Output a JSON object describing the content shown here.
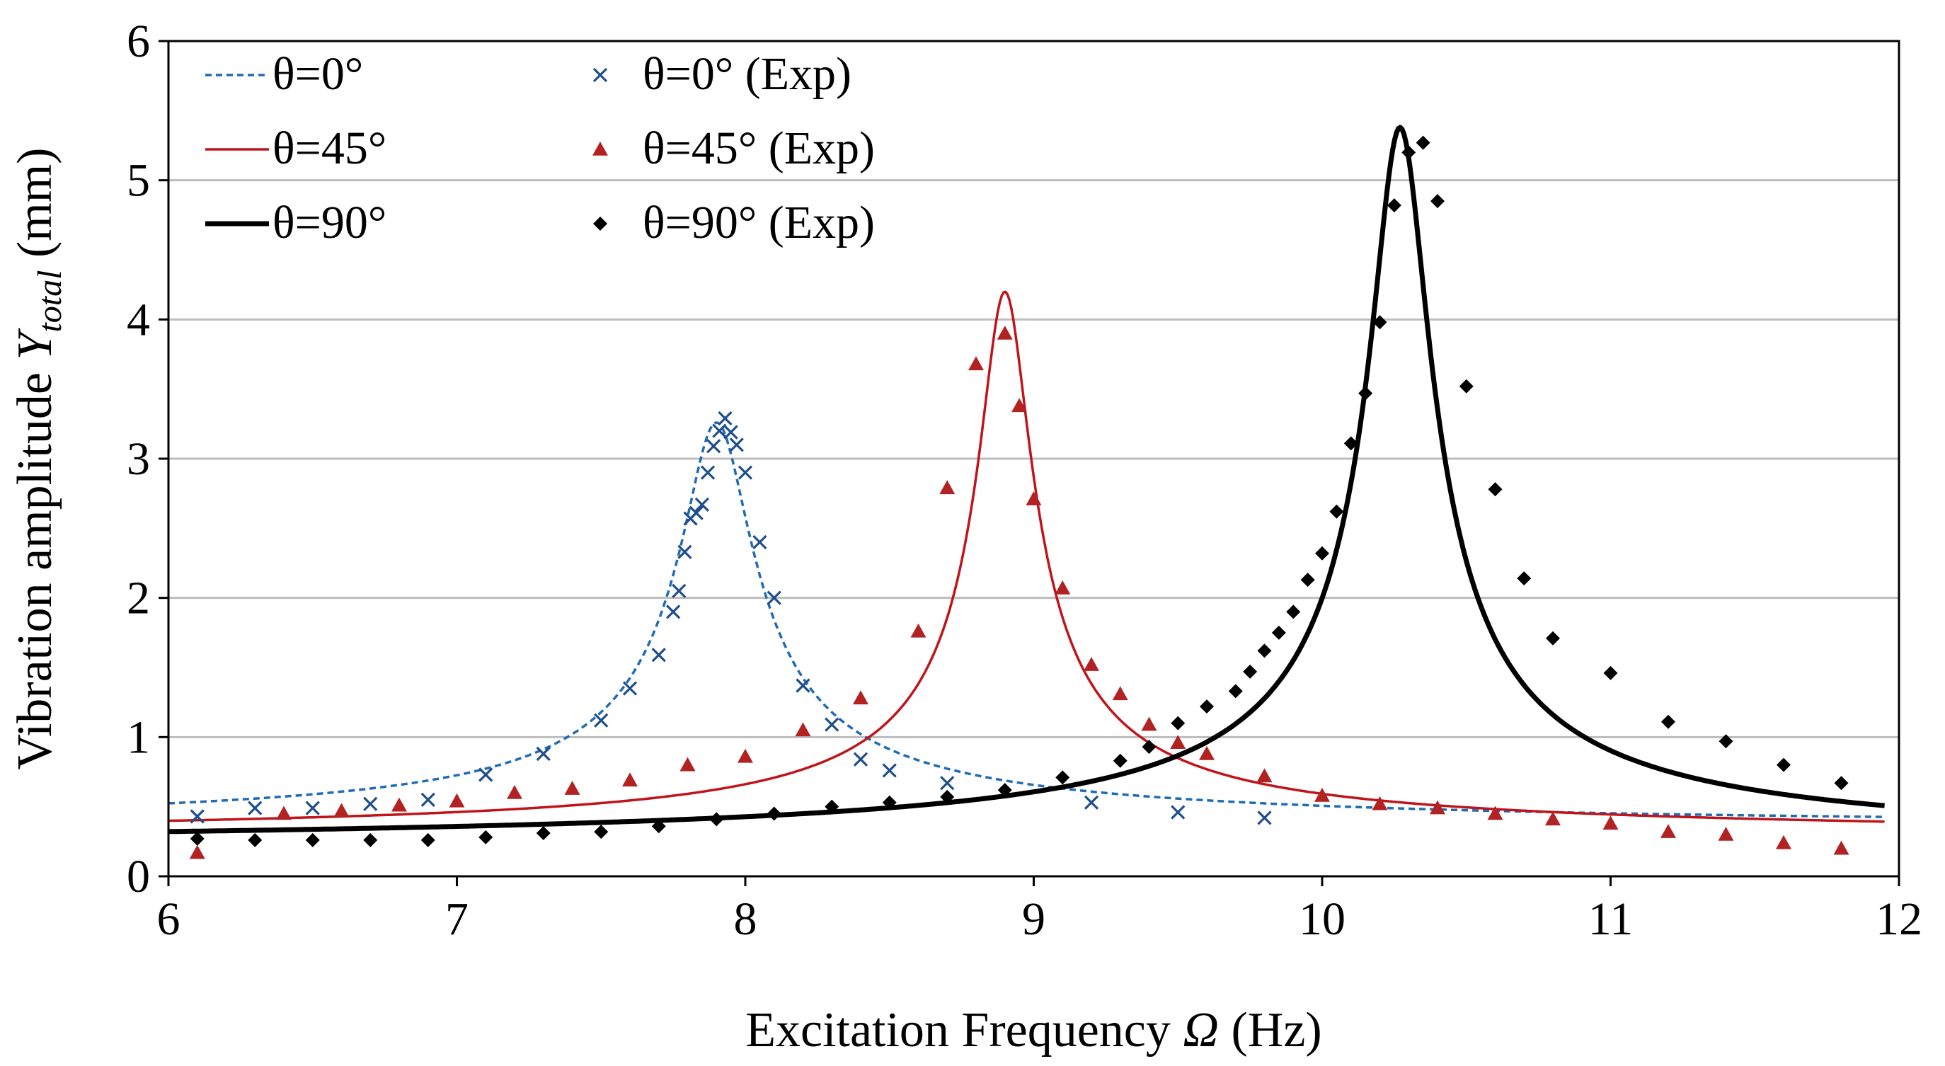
{
  "chart_data": {
    "type": "line",
    "title": "",
    "xlabel": "Excitation Frequency",
    "xlabel_symbol": "Ω",
    "xlabel_unit": "(Hz)",
    "ylabel": "Vibration amplitude",
    "ylabel_symbol": "Y",
    "ylabel_subscript": "total",
    "ylabel_unit": "(mm)",
    "xlim": [
      6,
      12
    ],
    "ylim": [
      0,
      6
    ],
    "xticks": [
      "6",
      "7",
      "8",
      "9",
      "10",
      "11",
      "12"
    ],
    "yticks": [
      "0",
      "1",
      "2",
      "3",
      "4",
      "5",
      "6"
    ],
    "grid": "horizontal",
    "legend_position": "top-left",
    "series": [
      {
        "name": "θ=0°",
        "kind": "line",
        "style": "dashed",
        "color": "#1f6bb5",
        "curve": {
          "x_start": 6.0,
          "x_end": 11.95,
          "peak_x": 7.9,
          "peak_y": 3.26,
          "baseline": 0.34,
          "half_width": 0.12
        }
      },
      {
        "name": "θ=45°",
        "kind": "line",
        "style": "solid",
        "color": "#c0141a",
        "curve": {
          "x_start": 6.0,
          "x_end": 11.95,
          "peak_x": 8.9,
          "peak_y": 4.2,
          "baseline": 0.28,
          "half_width": 0.088
        }
      },
      {
        "name": "θ=90°",
        "kind": "line",
        "style": "solid-thick",
        "color": "#000000",
        "curve": {
          "x_start": 6.0,
          "x_end": 11.95,
          "peak_x": 10.27,
          "peak_y": 5.38,
          "baseline": 0.2,
          "half_width": 0.1
        }
      },
      {
        "name": "θ=0° (Exp)",
        "kind": "scatter",
        "marker": "x",
        "color": "#1f4e8c",
        "x": [
          6.1,
          6.3,
          6.5,
          6.7,
          6.9,
          7.1,
          7.3,
          7.5,
          7.6,
          7.7,
          7.75,
          7.77,
          7.79,
          7.81,
          7.83,
          7.85,
          7.87,
          7.89,
          7.91,
          7.93,
          7.95,
          7.97,
          8.0,
          8.05,
          8.1,
          8.2,
          8.3,
          8.4,
          8.5,
          8.7,
          9.2,
          9.5,
          9.8
        ],
        "y": [
          0.43,
          0.49,
          0.49,
          0.52,
          0.55,
          0.73,
          0.88,
          1.12,
          1.35,
          1.59,
          1.9,
          2.05,
          2.33,
          2.57,
          2.61,
          2.67,
          2.9,
          3.09,
          3.2,
          3.29,
          3.19,
          3.1,
          2.9,
          2.4,
          2.0,
          1.37,
          1.09,
          0.84,
          0.76,
          0.67,
          0.53,
          0.46,
          0.42
        ]
      },
      {
        "name": "θ=45° (Exp)",
        "kind": "scatter",
        "marker": "triangle",
        "color": "#b22222",
        "x": [
          6.1,
          6.4,
          6.6,
          6.8,
          7.0,
          7.2,
          7.4,
          7.6,
          7.8,
          8.0,
          8.2,
          8.4,
          8.6,
          8.7,
          8.8,
          8.9,
          8.95,
          9.0,
          9.1,
          9.2,
          9.3,
          9.4,
          9.5,
          9.6,
          9.8,
          10.0,
          10.2,
          10.4,
          10.6,
          10.8,
          11.0,
          11.2,
          11.4,
          11.6,
          11.8
        ],
        "y": [
          0.17,
          0.45,
          0.47,
          0.51,
          0.54,
          0.6,
          0.63,
          0.69,
          0.8,
          0.86,
          1.05,
          1.28,
          1.76,
          2.79,
          3.68,
          3.9,
          3.38,
          2.71,
          2.07,
          1.52,
          1.31,
          1.09,
          0.96,
          0.88,
          0.72,
          0.58,
          0.52,
          0.49,
          0.45,
          0.41,
          0.38,
          0.32,
          0.3,
          0.24,
          0.2
        ]
      },
      {
        "name": "θ=90° (Exp)",
        "kind": "scatter",
        "marker": "diamond",
        "color": "#000000",
        "x": [
          6.1,
          6.3,
          6.5,
          6.7,
          6.9,
          7.1,
          7.3,
          7.5,
          7.7,
          7.9,
          8.1,
          8.3,
          8.5,
          8.7,
          8.9,
          9.1,
          9.3,
          9.4,
          9.5,
          9.6,
          9.7,
          9.75,
          9.8,
          9.85,
          9.9,
          9.95,
          10.0,
          10.05,
          10.1,
          10.15,
          10.2,
          10.25,
          10.3,
          10.35,
          10.4,
          10.5,
          10.6,
          10.7,
          10.8,
          11.0,
          11.2,
          11.4,
          11.6,
          11.8
        ],
        "y": [
          0.27,
          0.26,
          0.26,
          0.26,
          0.26,
          0.28,
          0.31,
          0.32,
          0.36,
          0.41,
          0.45,
          0.5,
          0.53,
          0.57,
          0.62,
          0.71,
          0.83,
          0.93,
          1.1,
          1.22,
          1.33,
          1.47,
          1.62,
          1.75,
          1.9,
          2.13,
          2.32,
          2.62,
          3.11,
          3.47,
          3.98,
          4.82,
          5.2,
          5.27,
          4.85,
          3.52,
          2.78,
          2.14,
          1.71,
          1.46,
          1.11,
          0.97,
          0.8,
          0.67
        ]
      }
    ]
  }
}
